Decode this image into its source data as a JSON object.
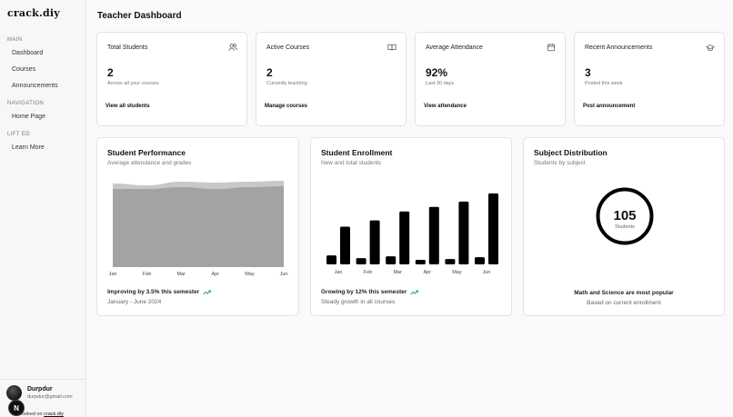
{
  "sidebar": {
    "brand": "crack.diy",
    "sections": [
      {
        "label": "MAIN",
        "items": [
          "Dashboard",
          "Courses",
          "Announcements"
        ]
      },
      {
        "label": "NAVIGATION",
        "items": [
          "Home Page"
        ]
      },
      {
        "label": "LIFT ED",
        "items": [
          "Learn More"
        ]
      }
    ],
    "user": {
      "name": "Durpdur",
      "email": "durpdur@gmail.com",
      "badge": "N"
    },
    "cooked_prefix": "Cooked on ",
    "cooked_link": "crack.diy"
  },
  "header": {
    "title": "Teacher Dashboard"
  },
  "stats": [
    {
      "title": "Total Students",
      "value": "2",
      "sub": "Across all your courses",
      "link": "View all students",
      "icon": "users-icon"
    },
    {
      "title": "Active Courses",
      "value": "2",
      "sub": "Currently teaching",
      "link": "Manage courses",
      "icon": "book-icon"
    },
    {
      "title": "Average Attendance",
      "value": "92%",
      "sub": "Last 30 days",
      "link": "View attendance",
      "icon": "calendar-icon"
    },
    {
      "title": "Recent Announcements",
      "value": "3",
      "sub": "Posted this week",
      "link": "Post announcement",
      "icon": "megaphone-icon"
    }
  ],
  "panels": {
    "performance": {
      "title": "Student Performance",
      "sub": "Average attendance and grades",
      "trend": "Improving by 3.5% this semester",
      "trend_sub": "January - June 2024"
    },
    "enrollment": {
      "title": "Student Enrollment",
      "sub": "New and total students",
      "trend": "Growing by 12% this semester",
      "trend_sub": "Steady growth in all courses"
    },
    "distribution": {
      "title": "Subject Distribution",
      "sub": "Students by subject",
      "total": "105",
      "total_label": "Students",
      "footer": "Math and Science are most popular",
      "footer_sub": "Based on current enrollment"
    }
  },
  "colors": {
    "trend_up": "#22a34a",
    "area_light": "#c8c8c8",
    "area_dark": "#a3a3a3",
    "bar": "#000000"
  },
  "chart_data": [
    {
      "type": "area",
      "categories": [
        "Jan",
        "Feb",
        "Mar",
        "Apr",
        "May",
        "Jun"
      ],
      "series": [
        {
          "values": [
            92,
            90,
            94,
            93,
            94,
            95
          ]
        },
        {
          "values": [
            86,
            86,
            88,
            86,
            88,
            89
          ]
        }
      ],
      "ylim": [
        0,
        100
      ]
    },
    {
      "type": "bar",
      "categories": [
        "Jan",
        "Feb",
        "Mar",
        "Apr",
        "May",
        "Jun"
      ],
      "series": [
        {
          "values": [
            10,
            7,
            9,
            5,
            6,
            8
          ]
        },
        {
          "values": [
            42,
            49,
            59,
            64,
            70,
            79
          ]
        }
      ],
      "ylim": [
        0,
        85
      ]
    }
  ]
}
